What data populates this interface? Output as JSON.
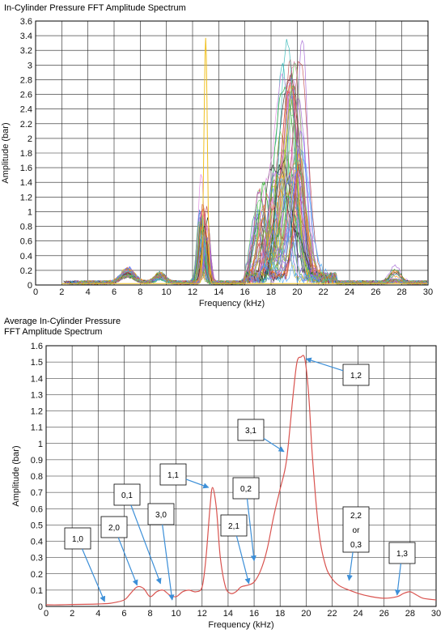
{
  "chart_data": [
    {
      "type": "line",
      "title": "In-Cylinder Pressure FFT Amplitude Spectrum",
      "xlabel": "Frequency (kHz)",
      "ylabel": "Amplitude (bar)",
      "xlim": [
        0,
        30
      ],
      "ylim": [
        0,
        3.6
      ],
      "xticks": [
        "0",
        "2",
        "4",
        "6",
        "8",
        "10",
        "12",
        "14",
        "16",
        "18",
        "20",
        "22",
        "24",
        "26",
        "28",
        "30"
      ],
      "yticks": [
        "0",
        "0.2",
        "0.4",
        "0.6",
        "0.8",
        "1",
        "1.2",
        "1.4",
        "1.6",
        "1.8",
        "2",
        "2.2",
        "2.4",
        "2.6",
        "2.8",
        "3",
        "3.2",
        "3.4",
        "3.6"
      ],
      "grid": true,
      "series_count": 60,
      "colors": [
        "#e84a4a",
        "#3a7bd5",
        "#2aa02a",
        "#9b59d0",
        "#f0c020",
        "#e07be0",
        "#1f1f1f",
        "#20b0b0",
        "#ff8800",
        "#7a5cff",
        "#5fd35f",
        "#c04040",
        "#4aa8ff",
        "#d06fa0",
        "#8fbc2f"
      ],
      "peaks": [
        {
          "x": 7.0,
          "y_max": 0.2
        },
        {
          "x": 9.5,
          "y_max": 0.15
        },
        {
          "x": 12.8,
          "y_max": 1.5
        },
        {
          "x": 13.0,
          "y_max": 3.35
        },
        {
          "x": 17.5,
          "y_max": 1.4
        },
        {
          "x": 19.5,
          "y_max": 3.55
        },
        {
          "x": 27.5,
          "y_max": 0.3
        }
      ]
    },
    {
      "type": "line",
      "title_lines": [
        "Average In-Cylinder Pressure",
        "FFT Amplitude Spectrum"
      ],
      "xlabel": "Frequency (kHz)",
      "ylabel": "Amplitude (bar)",
      "xlim": [
        0,
        30
      ],
      "ylim": [
        0,
        1.6
      ],
      "xticks": [
        "0",
        "2",
        "4",
        "6",
        "8",
        "10",
        "12",
        "14",
        "16",
        "18",
        "20",
        "22",
        "24",
        "26",
        "28",
        "30"
      ],
      "yticks": [
        "0",
        "0.1",
        "0.2",
        "0.3",
        "0.4",
        "0.5",
        "0.6",
        "0.7",
        "0.8",
        "0.9",
        "1",
        "1.1",
        "1.2",
        "1.3",
        "1.4",
        "1.5",
        "1.6"
      ],
      "grid": true,
      "line_color": "#d9534f",
      "x": [
        0,
        1,
        2,
        3,
        4,
        5,
        6,
        6.5,
        7,
        7.5,
        8,
        8.5,
        9,
        9.5,
        10,
        10.5,
        11,
        11.5,
        12,
        12.3,
        12.6,
        12.8,
        13.1,
        13.4,
        13.8,
        14.2,
        14.6,
        15,
        15.5,
        16,
        16.5,
        17,
        17.5,
        18,
        18.5,
        19,
        19.3,
        19.6,
        19.9,
        20.2,
        20.5,
        21,
        21.5,
        22,
        22.5,
        23,
        24,
        25,
        26,
        27,
        27.5,
        28,
        28.5,
        29,
        30
      ],
      "y": [
        0.01,
        0.01,
        0.012,
        0.013,
        0.015,
        0.02,
        0.04,
        0.08,
        0.12,
        0.11,
        0.06,
        0.09,
        0.1,
        0.07,
        0.06,
        0.09,
        0.1,
        0.09,
        0.12,
        0.3,
        0.6,
        0.73,
        0.6,
        0.3,
        0.12,
        0.08,
        0.09,
        0.12,
        0.13,
        0.15,
        0.22,
        0.35,
        0.55,
        0.72,
        0.9,
        1.3,
        1.5,
        1.53,
        1.52,
        1.3,
        0.9,
        0.45,
        0.25,
        0.17,
        0.13,
        0.11,
        0.08,
        0.06,
        0.05,
        0.06,
        0.08,
        0.09,
        0.07,
        0.05,
        0.04
      ],
      "annotations": [
        {
          "label": [
            "1,0"
          ],
          "x": 4.5,
          "y": 0.03
        },
        {
          "label": [
            "2,0"
          ],
          "x": 7.0,
          "y": 0.13
        },
        {
          "label": [
            "0,1"
          ],
          "x": 8.8,
          "y": 0.14
        },
        {
          "label": [
            "3,0"
          ],
          "x": 9.7,
          "y": 0.04
        },
        {
          "label": [
            "1,1"
          ],
          "x": 12.5,
          "y": 0.73
        },
        {
          "label": [
            "2,1"
          ],
          "x": 15.6,
          "y": 0.14
        },
        {
          "label": [
            "0,2"
          ],
          "x": 16.0,
          "y": 0.28
        },
        {
          "label": [
            "3,1"
          ],
          "x": 18.3,
          "y": 0.95
        },
        {
          "label": [
            "1,2"
          ],
          "x": 20.0,
          "y": 1.52
        },
        {
          "label": [
            "2,2",
            "or",
            "0,3"
          ],
          "x": 23.3,
          "y": 0.16
        },
        {
          "label": [
            "1,3"
          ],
          "x": 27.0,
          "y": 0.07
        }
      ]
    }
  ]
}
